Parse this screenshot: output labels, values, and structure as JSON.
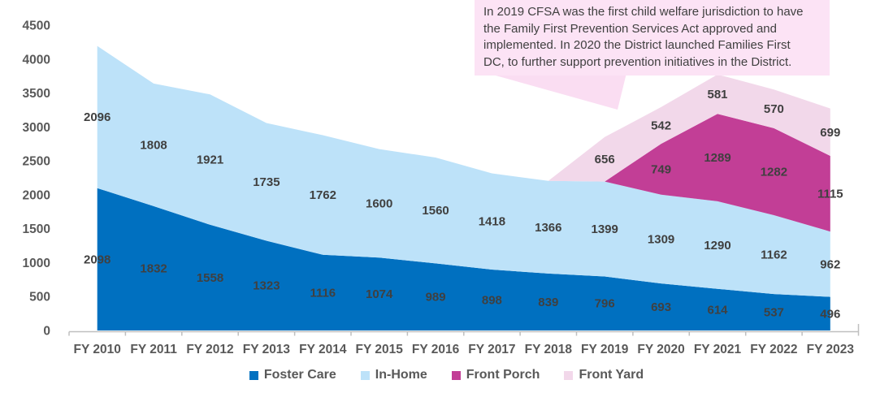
{
  "annotation": {
    "text": "In 2019 CFSA was the first child welfare jurisdiction to have\nthe Family First Prevention Services Act approved and\nimplemented. In 2020 the District launched Families First\nDC, to further support prevention initiatives in the District.",
    "bg_color": "#FCE3F5",
    "pointer_color": "#FADDF2",
    "text_color": "#404040"
  },
  "legend": {
    "items": [
      {
        "label": "Foster Care",
        "color": "#0070C0"
      },
      {
        "label": "In-Home",
        "color": "#BDE2F9"
      },
      {
        "label": "Front Porch",
        "color": "#C23E96"
      },
      {
        "label": "Front Yard",
        "color": "#F2D8EA"
      }
    ]
  },
  "chart_data": {
    "type": "area",
    "stacked": true,
    "title": "",
    "xlabel": "",
    "ylabel": "",
    "categories": [
      "FY 2010",
      "FY 2011",
      "FY 2012",
      "FY 2013",
      "FY 2014",
      "FY 2015",
      "FY 2016",
      "FY 2017",
      "FY 2018",
      "FY 2019",
      "FY 2020",
      "FY 2021",
      "FY 2022",
      "FY 2023"
    ],
    "series": [
      {
        "name": "Foster Care",
        "color": "#0070C0",
        "values": [
          2098,
          1832,
          1558,
          1323,
          1116,
          1074,
          989,
          898,
          839,
          796,
          693,
          614,
          537,
          496
        ]
      },
      {
        "name": "In-Home",
        "color": "#BDE2F9",
        "values": [
          2096,
          1808,
          1921,
          1735,
          1762,
          1600,
          1560,
          1418,
          1366,
          1399,
          1309,
          1290,
          1162,
          962
        ]
      },
      {
        "name": "Front Porch",
        "color": "#C23E96",
        "values": [
          0,
          0,
          0,
          0,
          0,
          0,
          0,
          0,
          0,
          0,
          749,
          1289,
          1282,
          1115
        ]
      },
      {
        "name": "Front Yard",
        "color": "#F2D8EA",
        "values": [
          0,
          0,
          0,
          0,
          0,
          0,
          0,
          0,
          0,
          656,
          542,
          581,
          570,
          699
        ]
      }
    ],
    "ylim": [
      0,
      4500
    ],
    "ytick_step": 500,
    "grid": false,
    "legend_position": "bottom",
    "axis_color": "#BFBFBF",
    "data_label_color": "#404040",
    "tick_label_color": "#595959"
  }
}
